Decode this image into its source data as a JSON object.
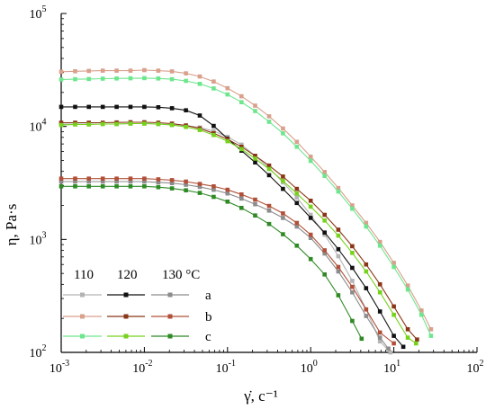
{
  "chart_data": {
    "type": "line",
    "xscale": "log",
    "yscale": "log",
    "xlim": [
      0.001,
      100
    ],
    "ylim": [
      100,
      100000
    ],
    "xlabel": "γ̇, c⁻¹",
    "ylabel": "η, Pa·s",
    "x_ticks": [
      {
        "mant": "10",
        "exp": "-3"
      },
      {
        "mant": "10",
        "exp": "-2"
      },
      {
        "mant": "10",
        "exp": "-1"
      },
      {
        "mant": "10",
        "exp": "0"
      },
      {
        "mant": "10",
        "exp": "1"
      },
      {
        "mant": "10",
        "exp": "2"
      }
    ],
    "y_ticks": [
      {
        "mant": "10",
        "exp": "2"
      },
      {
        "mant": "10",
        "exp": "3"
      },
      {
        "mant": "10",
        "exp": "4"
      },
      {
        "mant": "10",
        "exp": "5"
      }
    ],
    "legend": {
      "header": [
        "110",
        "120",
        "130 °C"
      ],
      "rows": [
        "a",
        "b",
        "c"
      ]
    },
    "series": [
      {
        "id": "a110",
        "color": "#b4b4b4",
        "x": [
          0.001,
          0.00147,
          0.00215,
          0.00316,
          0.00464,
          0.00681,
          0.01,
          0.0147,
          0.0215,
          0.0316,
          0.0464,
          0.0681,
          0.1,
          0.147,
          0.215,
          0.316,
          0.464,
          0.681,
          1,
          1.47,
          2.15,
          3.16,
          4.64,
          6.81,
          9.1
        ],
        "y": [
          10500,
          10500,
          10500,
          10500,
          10500,
          10600,
          10600,
          10500,
          10400,
          10200,
          9800,
          9100,
          8100,
          6900,
          5500,
          4300,
          3200,
          2350,
          1650,
          1100,
          710,
          430,
          240,
          125,
          100
        ]
      },
      {
        "id": "a120",
        "color": "#111111",
        "x": [
          0.001,
          0.00147,
          0.00215,
          0.00316,
          0.00464,
          0.00681,
          0.01,
          0.0147,
          0.0215,
          0.0316,
          0.0464,
          0.0681,
          0.1,
          0.147,
          0.215,
          0.316,
          0.464,
          0.681,
          1,
          1.47,
          2.15,
          3.16,
          4.64,
          6.81,
          10,
          13
        ],
        "y": [
          14900,
          14900,
          14900,
          14900,
          14900,
          14900,
          14900,
          14800,
          14500,
          13900,
          12500,
          10100,
          7800,
          6100,
          4800,
          3700,
          2800,
          2100,
          1550,
          1150,
          820,
          560,
          370,
          230,
          140,
          112
        ]
      },
      {
        "id": "a130",
        "color": "#8c8c8c",
        "x": [
          0.001,
          0.00147,
          0.00215,
          0.00316,
          0.00464,
          0.00681,
          0.01,
          0.0147,
          0.0215,
          0.0316,
          0.0464,
          0.0681,
          0.1,
          0.147,
          0.215,
          0.316,
          0.464,
          0.681,
          1,
          1.47,
          2.15,
          3.16,
          4.64,
          6.81,
          8.6
        ],
        "y": [
          3250,
          3250,
          3250,
          3250,
          3250,
          3250,
          3250,
          3200,
          3150,
          3050,
          2920,
          2750,
          2550,
          2300,
          2050,
          1800,
          1550,
          1300,
          1030,
          750,
          520,
          340,
          210,
          135,
          108
        ]
      },
      {
        "id": "b110",
        "color": "#d9a08c",
        "x": [
          0.001,
          0.00147,
          0.00215,
          0.00316,
          0.00464,
          0.00681,
          0.01,
          0.0147,
          0.0215,
          0.0316,
          0.0464,
          0.0681,
          0.1,
          0.147,
          0.215,
          0.316,
          0.464,
          0.681,
          1,
          1.47,
          2.15,
          3.16,
          4.64,
          6.81,
          10,
          14.7,
          21.5,
          28
        ],
        "y": [
          30500,
          30800,
          31000,
          31200,
          31200,
          31200,
          31500,
          31200,
          30700,
          29500,
          27700,
          25000,
          21800,
          18500,
          15300,
          12300,
          9600,
          7300,
          5400,
          3950,
          2850,
          2000,
          1400,
          950,
          620,
          390,
          235,
          160
        ]
      },
      {
        "id": "b120",
        "color": "#8b3518",
        "x": [
          0.001,
          0.00147,
          0.00215,
          0.00316,
          0.00464,
          0.00681,
          0.01,
          0.0147,
          0.0215,
          0.0316,
          0.0464,
          0.0681,
          0.1,
          0.147,
          0.215,
          0.316,
          0.464,
          0.681,
          1,
          1.47,
          2.15,
          3.16,
          4.64,
          6.81,
          10,
          14.7,
          19
        ],
        "y": [
          10800,
          10800,
          10800,
          10800,
          10850,
          10900,
          10900,
          10800,
          10600,
          10200,
          9600,
          8700,
          7700,
          6600,
          5500,
          4500,
          3600,
          2800,
          2200,
          1650,
          1220,
          870,
          600,
          400,
          255,
          160,
          130
        ]
      },
      {
        "id": "b130",
        "color": "#b05038",
        "x": [
          0.001,
          0.00147,
          0.00215,
          0.00316,
          0.00464,
          0.00681,
          0.01,
          0.0147,
          0.0215,
          0.0316,
          0.0464,
          0.0681,
          0.1,
          0.147,
          0.215,
          0.316,
          0.464,
          0.681,
          1,
          1.47,
          2.15,
          3.16,
          4.64,
          6.81,
          10
        ],
        "y": [
          3450,
          3450,
          3450,
          3450,
          3450,
          3450,
          3450,
          3400,
          3350,
          3250,
          3100,
          2950,
          2750,
          2500,
          2250,
          1980,
          1700,
          1400,
          1100,
          800,
          570,
          380,
          240,
          150,
          120
        ]
      },
      {
        "id": "c110",
        "color": "#6ee68e",
        "x": [
          0.001,
          0.00147,
          0.00215,
          0.00316,
          0.00464,
          0.00681,
          0.01,
          0.0147,
          0.0215,
          0.0316,
          0.0464,
          0.0681,
          0.1,
          0.147,
          0.215,
          0.316,
          0.464,
          0.681,
          1,
          1.47,
          2.15,
          3.16,
          4.64,
          6.81,
          10,
          14.7,
          21.5,
          28
        ],
        "y": [
          26000,
          26200,
          26300,
          26500,
          26600,
          26700,
          26800,
          26600,
          26200,
          25300,
          23800,
          21700,
          19200,
          16400,
          13700,
          11000,
          8700,
          6600,
          4950,
          3650,
          2650,
          1870,
          1300,
          880,
          570,
          360,
          215,
          140
        ]
      },
      {
        "id": "c120",
        "color": "#76d21c",
        "x": [
          0.001,
          0.00147,
          0.00215,
          0.00316,
          0.00464,
          0.00681,
          0.01,
          0.0147,
          0.0215,
          0.0316,
          0.0464,
          0.0681,
          0.1,
          0.147,
          0.215,
          0.316,
          0.464,
          0.681,
          1,
          1.47,
          2.15,
          3.16,
          4.64,
          6.81,
          10,
          14.7,
          18.5
        ],
        "y": [
          10300,
          10400,
          10400,
          10500,
          10500,
          10600,
          10600,
          10500,
          10300,
          9900,
          9300,
          8400,
          7400,
          6300,
          5200,
          4200,
          3300,
          2550,
          1950,
          1470,
          1080,
          760,
          520,
          340,
          215,
          135,
          120
        ]
      },
      {
        "id": "c130",
        "color": "#2f8a25",
        "x": [
          0.001,
          0.00147,
          0.00215,
          0.00316,
          0.00464,
          0.00681,
          0.01,
          0.0147,
          0.0215,
          0.0316,
          0.0464,
          0.0681,
          0.1,
          0.147,
          0.215,
          0.316,
          0.464,
          0.681,
          1,
          1.47,
          2.15,
          3.16,
          4.1
        ],
        "y": [
          2950,
          2950,
          2950,
          2950,
          2950,
          2950,
          2950,
          2900,
          2830,
          2720,
          2580,
          2380,
          2160,
          1900,
          1630,
          1370,
          1110,
          880,
          670,
          490,
          320,
          190,
          132
        ]
      }
    ],
    "legend_grid": [
      [
        "a110",
        "a120",
        "a130"
      ],
      [
        "b110",
        "b120",
        "b130"
      ],
      [
        "c110",
        "c120",
        "c130"
      ]
    ],
    "grid": false,
    "legend_position": "bottom-left"
  }
}
